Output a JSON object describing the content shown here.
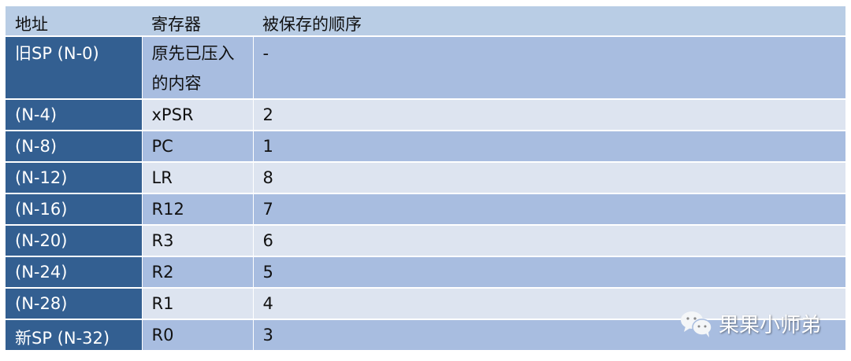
{
  "headers": [
    "地址",
    "寄存器",
    "被保存的顺序"
  ],
  "rows": [
    {
      "address": "旧SP (N-0)",
      "register": "原先已压入的内容",
      "order": "-"
    },
    {
      "address": "(N-4)",
      "register": "xPSR",
      "order": "2"
    },
    {
      "address": "(N-8)",
      "register": "PC",
      "order": "1"
    },
    {
      "address": "(N-12)",
      "register": "LR",
      "order": "8"
    },
    {
      "address": "(N-16)",
      "register": "R12",
      "order": "7"
    },
    {
      "address": "(N-20)",
      "register": "R3",
      "order": "6"
    },
    {
      "address": "(N-24)",
      "register": "R2",
      "order": "5"
    },
    {
      "address": "(N-28)",
      "register": "R1",
      "order": "4"
    },
    {
      "address": "新SP (N-32)",
      "register": "R0",
      "order": "3"
    }
  ],
  "watermark": {
    "icon": "wechat-icon",
    "text": "果果小师弟"
  },
  "colors": {
    "header": "#b9cde5",
    "address_column": "#335f91",
    "row_dark": "#a8bde0",
    "row_light": "#dde4f0"
  }
}
